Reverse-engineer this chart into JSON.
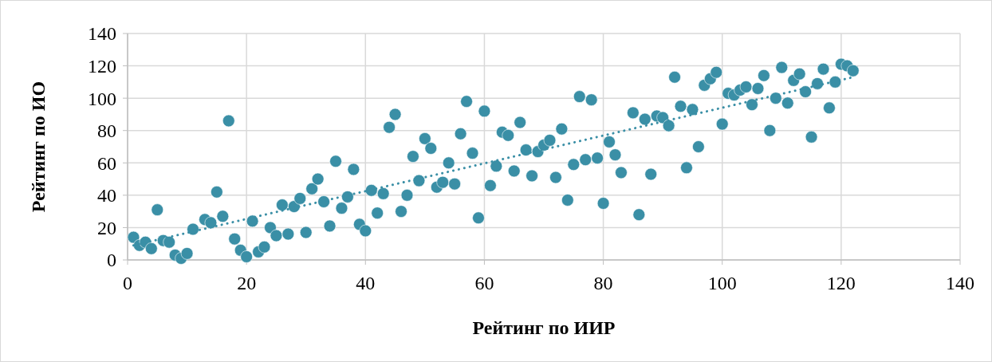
{
  "chart_data": {
    "type": "scatter",
    "xlabel": "Рейтинг по ИИР",
    "ylabel": "Рейтинг по ИО",
    "xlim": [
      0,
      140
    ],
    "xticks": [
      0,
      20,
      40,
      60,
      80,
      100,
      120,
      140
    ],
    "ylim": [
      0,
      140
    ],
    "yticks": [
      0,
      20,
      40,
      60,
      80,
      100,
      120,
      140
    ],
    "grid": true,
    "series": [
      {
        "color": "#3a8fa6",
        "marker": "circle",
        "x": [
          1,
          2,
          3,
          4,
          5,
          6,
          7,
          8,
          9,
          10,
          11,
          13,
          14,
          15,
          16,
          17,
          18,
          19,
          20,
          21,
          22,
          23,
          24,
          25,
          26,
          27,
          28,
          29,
          30,
          31,
          32,
          33,
          34,
          35,
          36,
          37,
          38,
          39,
          40,
          41,
          42,
          43,
          44,
          45,
          46,
          47,
          48,
          49,
          50,
          51,
          52,
          53,
          54,
          55,
          56,
          57,
          58,
          59,
          60,
          61,
          62,
          63,
          64,
          65,
          66,
          67,
          68,
          69,
          70,
          71,
          72,
          73,
          74,
          75,
          76,
          77,
          78,
          79,
          80,
          81,
          82,
          83,
          85,
          86,
          87,
          88,
          89,
          90,
          91,
          92,
          93,
          94,
          95,
          96,
          97,
          98,
          99,
          100,
          101,
          102,
          103,
          104,
          105,
          106,
          107,
          108,
          109,
          110,
          111,
          112,
          113,
          114,
          115,
          116,
          117,
          118,
          119,
          120,
          121,
          122
        ],
        "values": [
          14,
          9,
          11,
          7,
          31,
          12,
          11,
          3,
          1,
          4,
          19,
          25,
          23,
          42,
          27,
          86,
          13,
          6,
          2,
          24,
          5,
          8,
          20,
          15,
          34,
          16,
          33,
          38,
          17,
          44,
          50,
          36,
          21,
          61,
          32,
          39,
          56,
          22,
          18,
          43,
          29,
          41,
          82,
          90,
          30,
          40,
          64,
          49,
          75,
          69,
          45,
          48,
          60,
          47,
          78,
          98,
          66,
          26,
          92,
          46,
          58,
          79,
          77,
          55,
          85,
          68,
          52,
          67,
          71,
          74,
          51,
          81,
          37,
          59,
          101,
          62,
          99,
          63,
          35,
          73,
          65,
          54,
          91,
          28,
          87,
          53,
          89,
          88,
          83,
          113,
          95,
          57,
          93,
          70,
          108,
          112,
          116,
          84,
          103,
          102,
          105,
          107,
          96,
          106,
          114,
          80,
          100,
          119,
          97,
          111,
          115,
          104,
          76,
          109,
          118,
          94,
          110,
          121,
          120,
          117
        ]
      },
      {
        "type": "line",
        "color": "#3a8fa6",
        "line_style": "dotted",
        "x": [
          1,
          122
        ],
        "values": [
          9,
          113
        ]
      }
    ]
  }
}
